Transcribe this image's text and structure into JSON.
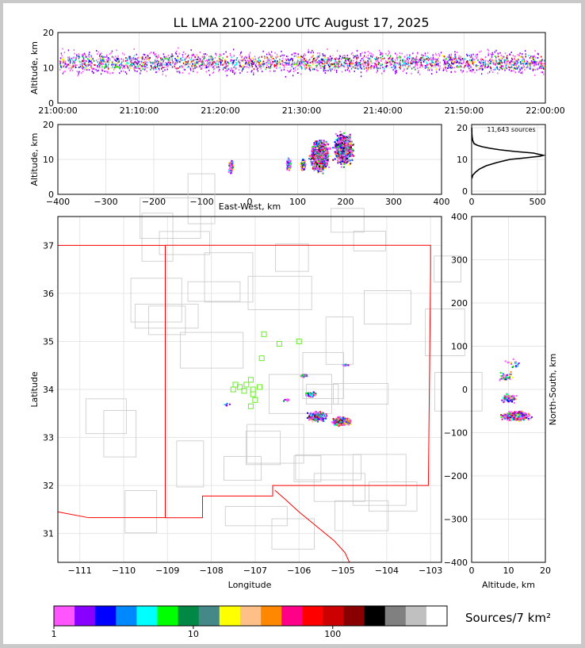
{
  "title": "LL LMA 2100-2200 UTC August 17, 2025",
  "source_count": "11,643 sources",
  "colorbar_label": "Sources/7 km²",
  "colorbar_colors": [
    "#ff55ff",
    "#8800ff",
    "#0000ff",
    "#0088ff",
    "#00ffff",
    "#00ff00",
    "#008844",
    "#448888",
    "#ffff00",
    "#ffc088",
    "#ff8800",
    "#ff0088",
    "#ff0000",
    "#cc0000",
    "#880000",
    "#000000",
    "#808080",
    "#c0c0c0",
    "#ffffff"
  ],
  "chart_data": [
    {
      "type": "scatter",
      "name": "altitude-time",
      "xlabel": "",
      "ylabel": "Altitude, km",
      "xticks": [
        "21:00:00",
        "21:10:00",
        "21:20:00",
        "21:30:00",
        "21:40:00",
        "21:50:00",
        "22:00:00"
      ],
      "yticks": [
        0,
        10,
        20
      ],
      "ylim": [
        0,
        20
      ]
    },
    {
      "type": "scatter",
      "name": "east-west-altitude",
      "xlabel": "East-West, km",
      "ylabel": "Altitude, km",
      "xlim": [
        -400,
        400
      ],
      "ylim": [
        0,
        20
      ],
      "xticks": [
        -400,
        -300,
        -200,
        -100,
        0,
        100,
        200,
        300,
        400
      ],
      "yticks": [
        0,
        10,
        20
      ],
      "clusters": [
        {
          "x": -40,
          "y": 8,
          "count": 40
        },
        {
          "x": 80,
          "y": 8.5,
          "count": 60
        },
        {
          "x": 110,
          "y": 8.5,
          "count": 50
        },
        {
          "x": 145,
          "y": 11,
          "count": 600
        },
        {
          "x": 195,
          "y": 13,
          "count": 500
        }
      ]
    },
    {
      "type": "line",
      "name": "altitude-histogram",
      "xlabel": "",
      "ylabel": "",
      "xlim": [
        0,
        560
      ],
      "ylim": [
        0,
        20
      ],
      "xticks": [
        0,
        500
      ],
      "yticks": [
        0,
        10,
        20
      ],
      "x": [
        2,
        8,
        30,
        60,
        110,
        190,
        290,
        410,
        520,
        545,
        470,
        330,
        220,
        140,
        80,
        40,
        18,
        8,
        4,
        2,
        1
      ],
      "y": [
        4,
        5,
        6,
        7,
        8,
        9,
        10,
        10.5,
        11,
        11.3,
        12,
        12.5,
        13,
        13.5,
        14,
        14.5,
        15,
        16,
        17,
        18,
        20
      ]
    },
    {
      "type": "scatter",
      "name": "plan-view",
      "xlabel": "Longitude",
      "ylabel": "Latitude",
      "xlim": [
        -111.5,
        -102.75
      ],
      "ylim": [
        30.4,
        37.6
      ],
      "xticks": [
        -111,
        -110,
        -109,
        -108,
        -107,
        -106,
        -105,
        -104,
        -103
      ],
      "yticks": [
        31,
        32,
        33,
        34,
        35,
        36,
        37
      ],
      "stations": [
        {
          "lon": -107.2,
          "lat": 34.1
        },
        {
          "lon": -107.35,
          "lat": 34.05
        },
        {
          "lon": -107.5,
          "lat": 34.0
        },
        {
          "lon": -107.1,
          "lat": 34.2
        },
        {
          "lon": -107.05,
          "lat": 34.0
        },
        {
          "lon": -106.9,
          "lat": 34.05
        },
        {
          "lon": -107.05,
          "lat": 33.9
        },
        {
          "lon": -107.0,
          "lat": 33.78
        },
        {
          "lon": -107.1,
          "lat": 33.65
        },
        {
          "lon": -107.45,
          "lat": 34.1
        },
        {
          "lon": -106.85,
          "lat": 34.65
        },
        {
          "lon": -106.45,
          "lat": 34.95
        },
        {
          "lon": -106.0,
          "lat": 35.0
        },
        {
          "lon": -106.8,
          "lat": 35.15
        },
        {
          "lon": -107.25,
          "lat": 33.97
        }
      ],
      "clusters": [
        {
          "lon": -105.6,
          "lat": 33.45,
          "count": 600
        },
        {
          "lon": -105.05,
          "lat": 33.35,
          "count": 500
        },
        {
          "lon": -105.75,
          "lat": 33.9,
          "count": 80
        },
        {
          "lon": -105.9,
          "lat": 34.3,
          "count": 40
        },
        {
          "lon": -104.95,
          "lat": 34.52,
          "count": 15
        },
        {
          "lon": -106.3,
          "lat": 33.8,
          "count": 10
        },
        {
          "lon": -107.65,
          "lat": 33.7,
          "count": 6
        }
      ]
    },
    {
      "type": "scatter",
      "name": "altitude-north-south",
      "xlabel": "Altitude, km",
      "ylabel": "North-South, km",
      "xlim": [
        0,
        20
      ],
      "ylim": [
        -400,
        400
      ],
      "xticks": [
        0,
        10,
        20
      ],
      "yticks": [
        -400,
        -300,
        -200,
        -100,
        0,
        100,
        200,
        300,
        400
      ],
      "clusters": [
        {
          "x": 12,
          "y": -60,
          "count": 600
        },
        {
          "x": 10,
          "y": -20,
          "count": 100
        },
        {
          "x": 9,
          "y": 30,
          "count": 50
        },
        {
          "x": 11.5,
          "y": 60,
          "count": 20
        }
      ]
    }
  ],
  "colorbar": {
    "type": "colorbar",
    "scale": "log",
    "ticks": [
      "1",
      "10",
      "100"
    ]
  }
}
